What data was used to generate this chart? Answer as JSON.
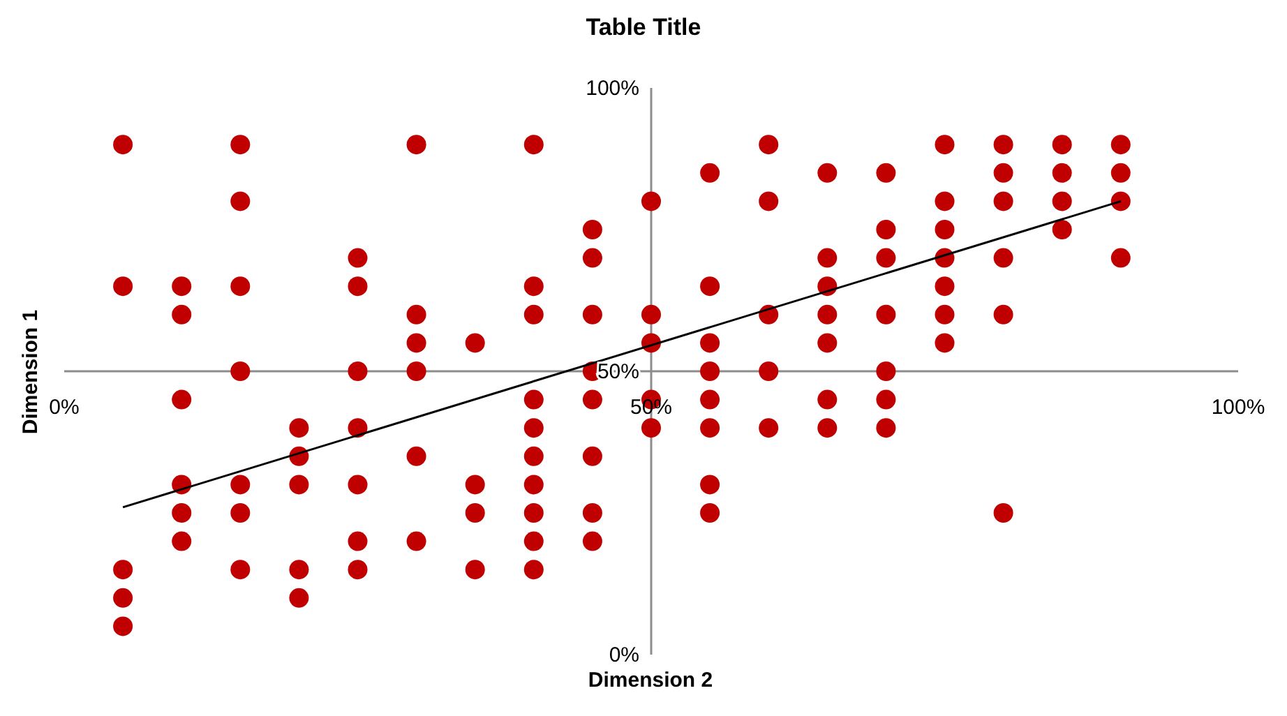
{
  "chart_data": {
    "type": "scatter",
    "title": "Table Title",
    "xlabel": "Dimension 2",
    "ylabel": "Dimension 1",
    "xlim": [
      0,
      100
    ],
    "ylim": [
      0,
      100
    ],
    "xticks": [
      {
        "value": 0,
        "label": "0%"
      },
      {
        "value": 50,
        "label": "50%"
      },
      {
        "value": 100,
        "label": "100%"
      }
    ],
    "yticks": [
      {
        "value": 0,
        "label": "0%"
      },
      {
        "value": 50,
        "label": "50%"
      },
      {
        "value": 100,
        "label": "100%"
      }
    ],
    "marker": "circle",
    "series": [
      {
        "color": "#c00000",
        "x": [
          5,
          5,
          5,
          5,
          5,
          10,
          10,
          10,
          10,
          10,
          10,
          15,
          15,
          15,
          15,
          15,
          15,
          15,
          20,
          20,
          20,
          20,
          20,
          25,
          25,
          25,
          25,
          25,
          25,
          25,
          30,
          30,
          30,
          30,
          30,
          30,
          35,
          35,
          35,
          35,
          40,
          40,
          40,
          40,
          40,
          40,
          40,
          40,
          40,
          40,
          45,
          45,
          45,
          45,
          45,
          45,
          45,
          45,
          50,
          50,
          50,
          50,
          50,
          55,
          55,
          55,
          55,
          55,
          55,
          55,
          55,
          60,
          60,
          60,
          60,
          60,
          65,
          65,
          65,
          65,
          65,
          65,
          65,
          70,
          70,
          70,
          70,
          70,
          70,
          70,
          75,
          75,
          75,
          75,
          75,
          75,
          75,
          80,
          80,
          80,
          80,
          80,
          80,
          85,
          85,
          85,
          85,
          90,
          90,
          90,
          90
        ],
        "values": [
          90,
          65,
          15,
          10,
          5,
          65,
          60,
          45,
          30,
          25,
          20,
          90,
          80,
          65,
          50,
          30,
          25,
          15,
          40,
          35,
          30,
          15,
          10,
          70,
          65,
          50,
          40,
          30,
          20,
          15,
          90,
          60,
          55,
          50,
          35,
          20,
          55,
          30,
          25,
          15,
          90,
          65,
          60,
          45,
          40,
          35,
          30,
          25,
          20,
          15,
          75,
          70,
          60,
          50,
          45,
          35,
          25,
          20,
          80,
          60,
          55,
          45,
          40,
          85,
          65,
          55,
          50,
          45,
          40,
          30,
          25,
          90,
          80,
          60,
          50,
          40,
          85,
          70,
          65,
          60,
          55,
          45,
          40,
          85,
          75,
          70,
          60,
          50,
          45,
          40,
          90,
          80,
          75,
          70,
          65,
          60,
          55,
          90,
          85,
          80,
          70,
          60,
          25,
          90,
          85,
          80,
          75,
          90,
          85,
          80,
          70
        ]
      },
      {
        "type": "line",
        "color": "#000000",
        "marker": "none",
        "x": [
          5,
          90
        ],
        "values": [
          26,
          80
        ]
      }
    ]
  }
}
